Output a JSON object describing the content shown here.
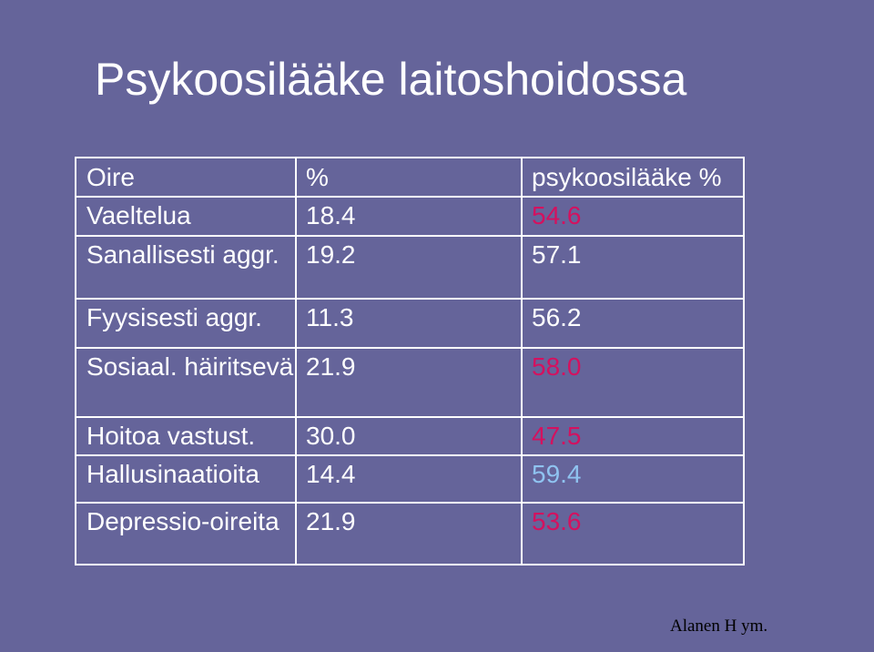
{
  "header": {
    "title": "Psykoosilääke laitoshoidossa"
  },
  "table": {
    "columns": [
      "Oire",
      "%",
      "psykoosilääke %"
    ],
    "rows": [
      [
        "Vaeltelua",
        "18.4",
        "54.6"
      ],
      [
        "Sanallisesti aggr.",
        "19.2",
        "57.1"
      ],
      [
        "Fyysisesti aggr.",
        "11.3",
        "56.2"
      ],
      [
        "Sosiaal. häiritsevä",
        "21.9",
        "58.0"
      ],
      [
        "Hoitoa vastust.",
        "30.0",
        "47.5"
      ],
      [
        "Hallusinaatioita",
        "14.4",
        "59.4"
      ],
      [
        "Depressio-oireita",
        "21.9",
        "53.6"
      ]
    ],
    "value_colors": [
      "#d4115f",
      "#ffffff",
      "#ffffff",
      "#d4115f",
      "#d4115f",
      "#8fc3f0",
      "#d4115f"
    ]
  },
  "footer": "Alanen H ym."
}
